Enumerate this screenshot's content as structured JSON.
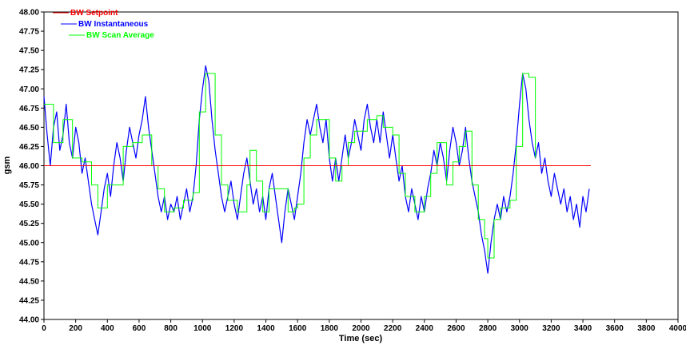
{
  "chart_data": {
    "type": "line",
    "title": "",
    "xlabel": "Time (sec)",
    "ylabel": "gsm",
    "xlim": [
      0,
      4000
    ],
    "ylim": [
      44.0,
      48.0
    ],
    "x_ticks": [
      0,
      200,
      400,
      600,
      800,
      1000,
      1200,
      1400,
      1600,
      1800,
      2000,
      2200,
      2400,
      2600,
      2800,
      3000,
      3200,
      3400,
      3600,
      3800,
      4000
    ],
    "y_ticks": [
      "44.00",
      "44.25",
      "44.50",
      "44.75",
      "45.00",
      "45.25",
      "45.50",
      "45.75",
      "46.00",
      "46.25",
      "46.50",
      "46.75",
      "47.00",
      "47.25",
      "47.50",
      "47.75",
      "48.00"
    ],
    "grid": false,
    "legend_position": "top-left",
    "series": [
      {
        "name": "BW Setpoint",
        "color": "#ff0000",
        "points": [
          [
            0,
            46.0
          ],
          [
            3450,
            46.0
          ]
        ]
      },
      {
        "name": "BW Instantaneous",
        "color": "#0000ff",
        "points": [
          [
            0,
            46.9
          ],
          [
            20,
            46.4
          ],
          [
            40,
            46.0
          ],
          [
            60,
            46.5
          ],
          [
            80,
            46.7
          ],
          [
            100,
            46.2
          ],
          [
            120,
            46.4
          ],
          [
            140,
            46.8
          ],
          [
            160,
            46.3
          ],
          [
            180,
            46.1
          ],
          [
            200,
            46.5
          ],
          [
            220,
            46.3
          ],
          [
            240,
            45.9
          ],
          [
            260,
            46.1
          ],
          [
            280,
            45.8
          ],
          [
            300,
            45.5
          ],
          [
            320,
            45.3
          ],
          [
            340,
            45.1
          ],
          [
            360,
            45.4
          ],
          [
            380,
            45.7
          ],
          [
            400,
            45.9
          ],
          [
            420,
            45.6
          ],
          [
            440,
            46.0
          ],
          [
            460,
            46.3
          ],
          [
            480,
            46.1
          ],
          [
            500,
            45.8
          ],
          [
            520,
            46.2
          ],
          [
            540,
            46.5
          ],
          [
            560,
            46.3
          ],
          [
            580,
            46.1
          ],
          [
            600,
            46.4
          ],
          [
            620,
            46.6
          ],
          [
            640,
            46.9
          ],
          [
            660,
            46.5
          ],
          [
            680,
            46.2
          ],
          [
            700,
            45.9
          ],
          [
            720,
            45.6
          ],
          [
            740,
            45.4
          ],
          [
            760,
            45.6
          ],
          [
            780,
            45.3
          ],
          [
            800,
            45.5
          ],
          [
            820,
            45.4
          ],
          [
            840,
            45.6
          ],
          [
            860,
            45.3
          ],
          [
            880,
            45.5
          ],
          [
            900,
            45.7
          ],
          [
            920,
            45.4
          ],
          [
            940,
            45.6
          ],
          [
            960,
            46.0
          ],
          [
            980,
            46.6
          ],
          [
            1000,
            47.0
          ],
          [
            1020,
            47.3
          ],
          [
            1040,
            47.1
          ],
          [
            1060,
            46.6
          ],
          [
            1080,
            46.2
          ],
          [
            1100,
            45.9
          ],
          [
            1120,
            45.6
          ],
          [
            1140,
            45.4
          ],
          [
            1160,
            45.6
          ],
          [
            1180,
            45.8
          ],
          [
            1200,
            45.5
          ],
          [
            1220,
            45.3
          ],
          [
            1240,
            45.6
          ],
          [
            1260,
            45.9
          ],
          [
            1280,
            46.1
          ],
          [
            1300,
            45.8
          ],
          [
            1320,
            45.5
          ],
          [
            1340,
            45.7
          ],
          [
            1360,
            45.4
          ],
          [
            1380,
            45.6
          ],
          [
            1400,
            45.3
          ],
          [
            1420,
            45.7
          ],
          [
            1440,
            45.9
          ],
          [
            1460,
            45.6
          ],
          [
            1480,
            45.3
          ],
          [
            1500,
            45.0
          ],
          [
            1520,
            45.4
          ],
          [
            1540,
            45.7
          ],
          [
            1560,
            45.5
          ],
          [
            1580,
            45.3
          ],
          [
            1600,
            45.6
          ],
          [
            1620,
            45.9
          ],
          [
            1640,
            46.3
          ],
          [
            1660,
            46.6
          ],
          [
            1680,
            46.4
          ],
          [
            1700,
            46.6
          ],
          [
            1720,
            46.8
          ],
          [
            1740,
            46.5
          ],
          [
            1760,
            46.3
          ],
          [
            1780,
            46.6
          ],
          [
            1800,
            46.1
          ],
          [
            1820,
            45.8
          ],
          [
            1840,
            46.1
          ],
          [
            1860,
            45.8
          ],
          [
            1880,
            46.1
          ],
          [
            1900,
            46.4
          ],
          [
            1920,
            46.1
          ],
          [
            1940,
            46.3
          ],
          [
            1960,
            46.6
          ],
          [
            1980,
            46.4
          ],
          [
            2000,
            46.2
          ],
          [
            2020,
            46.6
          ],
          [
            2040,
            46.8
          ],
          [
            2060,
            46.5
          ],
          [
            2080,
            46.3
          ],
          [
            2100,
            46.6
          ],
          [
            2120,
            46.3
          ],
          [
            2140,
            46.7
          ],
          [
            2160,
            46.4
          ],
          [
            2180,
            46.1
          ],
          [
            2200,
            46.4
          ],
          [
            2220,
            46.1
          ],
          [
            2240,
            45.8
          ],
          [
            2260,
            46.0
          ],
          [
            2280,
            45.6
          ],
          [
            2300,
            45.4
          ],
          [
            2320,
            45.7
          ],
          [
            2340,
            45.5
          ],
          [
            2360,
            45.3
          ],
          [
            2380,
            45.6
          ],
          [
            2400,
            45.4
          ],
          [
            2420,
            45.7
          ],
          [
            2440,
            45.9
          ],
          [
            2460,
            46.2
          ],
          [
            2480,
            46.0
          ],
          [
            2500,
            46.3
          ],
          [
            2520,
            46.1
          ],
          [
            2540,
            45.8
          ],
          [
            2560,
            46.2
          ],
          [
            2580,
            46.5
          ],
          [
            2600,
            46.3
          ],
          [
            2620,
            46.0
          ],
          [
            2640,
            46.2
          ],
          [
            2660,
            46.5
          ],
          [
            2680,
            46.1
          ],
          [
            2700,
            45.8
          ],
          [
            2720,
            45.6
          ],
          [
            2740,
            45.4
          ],
          [
            2760,
            45.1
          ],
          [
            2780,
            44.9
          ],
          [
            2800,
            44.6
          ],
          [
            2820,
            45.0
          ],
          [
            2840,
            45.3
          ],
          [
            2860,
            45.5
          ],
          [
            2880,
            45.3
          ],
          [
            2900,
            45.6
          ],
          [
            2920,
            45.4
          ],
          [
            2940,
            45.6
          ],
          [
            2960,
            45.9
          ],
          [
            2980,
            46.3
          ],
          [
            3000,
            46.8
          ],
          [
            3020,
            47.2
          ],
          [
            3040,
            47.0
          ],
          [
            3060,
            46.6
          ],
          [
            3080,
            46.3
          ],
          [
            3100,
            46.1
          ],
          [
            3120,
            46.3
          ],
          [
            3140,
            45.9
          ],
          [
            3160,
            46.1
          ],
          [
            3180,
            45.8
          ],
          [
            3200,
            45.6
          ],
          [
            3220,
            45.9
          ],
          [
            3240,
            45.7
          ],
          [
            3260,
            45.5
          ],
          [
            3280,
            45.7
          ],
          [
            3300,
            45.4
          ],
          [
            3320,
            45.6
          ],
          [
            3340,
            45.3
          ],
          [
            3360,
            45.5
          ],
          [
            3380,
            45.2
          ],
          [
            3400,
            45.6
          ],
          [
            3420,
            45.4
          ],
          [
            3440,
            45.7
          ]
        ]
      },
      {
        "name": "BW Scan Average",
        "color": "#00ff00",
        "points": [
          [
            0,
            46.8
          ],
          [
            60,
            46.3
          ],
          [
            120,
            46.6
          ],
          [
            180,
            46.1
          ],
          [
            240,
            46.05
          ],
          [
            300,
            45.75
          ],
          [
            340,
            45.45
          ],
          [
            400,
            45.75
          ],
          [
            440,
            45.75
          ],
          [
            500,
            46.25
          ],
          [
            560,
            46.3
          ],
          [
            620,
            46.4
          ],
          [
            680,
            46.0
          ],
          [
            720,
            45.7
          ],
          [
            760,
            45.4
          ],
          [
            820,
            45.45
          ],
          [
            880,
            45.55
          ],
          [
            940,
            45.65
          ],
          [
            980,
            46.7
          ],
          [
            1020,
            47.2
          ],
          [
            1080,
            46.4
          ],
          [
            1120,
            45.75
          ],
          [
            1160,
            45.55
          ],
          [
            1220,
            45.4
          ],
          [
            1280,
            45.75
          ],
          [
            1300,
            46.2
          ],
          [
            1340,
            45.8
          ],
          [
            1380,
            45.4
          ],
          [
            1420,
            45.7
          ],
          [
            1480,
            45.7
          ],
          [
            1540,
            45.4
          ],
          [
            1580,
            45.45
          ],
          [
            1600,
            45.5
          ],
          [
            1640,
            46.1
          ],
          [
            1680,
            46.4
          ],
          [
            1720,
            46.6
          ],
          [
            1760,
            46.6
          ],
          [
            1800,
            46.1
          ],
          [
            1840,
            45.8
          ],
          [
            1880,
            46.0
          ],
          [
            1920,
            46.3
          ],
          [
            1960,
            46.45
          ],
          [
            2000,
            46.45
          ],
          [
            2040,
            46.6
          ],
          [
            2100,
            46.65
          ],
          [
            2140,
            46.5
          ],
          [
            2200,
            46.4
          ],
          [
            2240,
            45.9
          ],
          [
            2280,
            45.6
          ],
          [
            2340,
            45.4
          ],
          [
            2400,
            45.6
          ],
          [
            2440,
            45.9
          ],
          [
            2480,
            46.3
          ],
          [
            2540,
            45.75
          ],
          [
            2580,
            46.05
          ],
          [
            2620,
            46.25
          ],
          [
            2660,
            46.45
          ],
          [
            2700,
            45.75
          ],
          [
            2740,
            45.3
          ],
          [
            2780,
            45.05
          ],
          [
            2800,
            44.8
          ],
          [
            2840,
            45.3
          ],
          [
            2880,
            45.45
          ],
          [
            2940,
            45.55
          ],
          [
            2980,
            46.25
          ],
          [
            3020,
            47.2
          ],
          [
            3060,
            47.15
          ],
          [
            3100,
            46.1
          ]
        ]
      }
    ]
  }
}
